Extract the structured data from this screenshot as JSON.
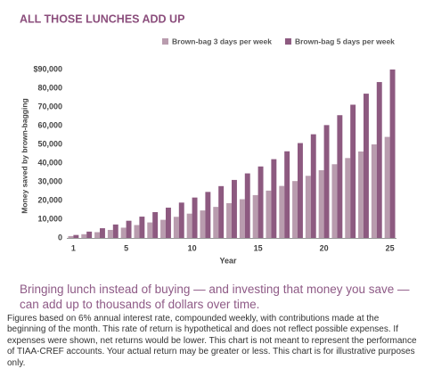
{
  "chart_data": {
    "type": "bar",
    "title": "ALL THOSE LUNCHES ADD UP",
    "ylabel": "Money saved by brown-bagging",
    "xlabel": "Year",
    "x": [
      1,
      2,
      3,
      4,
      5,
      6,
      7,
      8,
      9,
      10,
      11,
      12,
      13,
      14,
      15,
      16,
      17,
      18,
      19,
      20,
      21,
      22,
      23,
      24,
      25
    ],
    "xlim": [
      0.5,
      25.5
    ],
    "xticks": [
      1,
      5,
      10,
      15,
      20,
      25
    ],
    "ylim": [
      0,
      90000
    ],
    "yticks": [
      0,
      {
        "value": 10000,
        "label": "10,000"
      },
      {
        "value": 20000,
        "label": "20,000"
      },
      {
        "value": 30000,
        "label": "30,000"
      },
      {
        "value": 40000,
        "label": "40,000"
      },
      {
        "value": 50000,
        "label": "50,000"
      },
      {
        "value": 60000,
        "label": "60,000"
      },
      {
        "value": 70000,
        "label": "70,000"
      },
      {
        "value": 80000,
        "label": "80,000"
      },
      {
        "value": 90000,
        "label": "$90,000"
      }
    ],
    "grid": false,
    "legend": "top",
    "series": [
      {
        "name": "Brown-bag 3 days per week",
        "color": "#b99cae",
        "values": [
          1000,
          2000,
          3100,
          4300,
          5500,
          6900,
          8300,
          9700,
          11300,
          13000,
          14700,
          16600,
          18600,
          20700,
          22900,
          25300,
          27800,
          30400,
          33200,
          36200,
          39400,
          42700,
          46200,
          50000,
          54000
        ]
      },
      {
        "name": "Brown-bag 5 days per week",
        "color": "#8d5a80",
        "values": [
          1600,
          3400,
          5200,
          7200,
          9200,
          11400,
          13800,
          16200,
          18900,
          21600,
          24600,
          27700,
          31000,
          34500,
          38200,
          42100,
          46300,
          50700,
          55400,
          60300,
          65600,
          71200,
          77100,
          83300,
          90000
        ]
      }
    ]
  },
  "caption": "Bringing lunch instead of buying — and investing that money you save — can add up to thousands of dollars over time.",
  "footnote": "Figures based on 6% annual interest rate, compounded weekly, with contributions made at the beginning of the month. This rate of return is hypothetical and does not reflect possible expenses. If expenses were shown, net returns would be lower. This chart is not meant to represent the performance of TIAA-CREF accounts. Your actual return may be greater or less. This chart is for illustrative purposes only."
}
